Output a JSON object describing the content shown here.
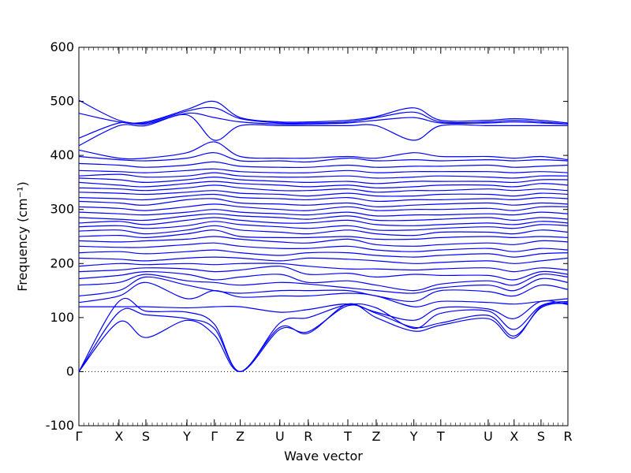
{
  "chart_data": {
    "type": "line",
    "title": "",
    "xlabel": "Wave vector",
    "ylabel": "Frequency (cm⁻¹)",
    "ylim": [
      -100,
      600
    ],
    "yticks": [
      -100,
      0,
      100,
      200,
      300,
      400,
      500,
      600
    ],
    "x_range": [
      0,
      1
    ],
    "q_points": [
      {
        "label": "Γ",
        "x": 0.0
      },
      {
        "label": "X",
        "x": 0.082
      },
      {
        "label": "S",
        "x": 0.137
      },
      {
        "label": "Y",
        "x": 0.221
      },
      {
        "label": "Γ",
        "x": 0.277
      },
      {
        "label": "Z",
        "x": 0.33
      },
      {
        "label": "U",
        "x": 0.411
      },
      {
        "label": "R",
        "x": 0.469
      },
      {
        "label": "T",
        "x": 0.55
      },
      {
        "label": "Z",
        "x": 0.608
      },
      {
        "label": "Y",
        "x": 0.685
      },
      {
        "label": "T",
        "x": 0.74
      },
      {
        "label": "U",
        "x": 0.837
      },
      {
        "label": "X",
        "x": 0.89
      },
      {
        "label": "S",
        "x": 0.945
      },
      {
        "label": "R",
        "x": 1.0
      }
    ],
    "zero_line": 0,
    "line_color": "#0000ff",
    "series": [
      {
        "values": [
          0,
          92,
          63,
          95,
          68,
          0,
          82,
          71,
          125,
          100,
          75,
          86,
          98,
          62,
          120,
          126
        ]
      },
      {
        "values": [
          0,
          110,
          105,
          98,
          80,
          0,
          78,
          74,
          122,
          108,
          82,
          90,
          104,
          66,
          118,
          128
        ]
      },
      {
        "values": [
          0,
          130,
          112,
          110,
          88,
          0,
          90,
          100,
          124,
          118,
          80,
          108,
          112,
          78,
          122,
          130
        ]
      },
      {
        "values": [
          120,
          120,
          120,
          118,
          120,
          120,
          110,
          115,
          125,
          110,
          95,
          118,
          116,
          98,
          130,
          124
        ]
      },
      {
        "values": [
          128,
          140,
          165,
          135,
          150,
          138,
          140,
          140,
          145,
          140,
          120,
          130,
          128,
          125,
          130,
          135
        ]
      },
      {
        "values": [
          140,
          150,
          175,
          160,
          150,
          145,
          150,
          150,
          150,
          140,
          130,
          150,
          148,
          140,
          160,
          152
        ]
      },
      {
        "values": [
          160,
          165,
          180,
          168,
          165,
          160,
          165,
          162,
          155,
          150,
          145,
          155,
          160,
          150,
          172,
          165
        ]
      },
      {
        "values": [
          172,
          178,
          185,
          180,
          170,
          175,
          180,
          165,
          168,
          160,
          150,
          162,
          168,
          160,
          180,
          175
        ]
      },
      {
        "values": [
          185,
          188,
          192,
          190,
          185,
          188,
          195,
          180,
          182,
          175,
          180,
          178,
          178,
          170,
          185,
          180
        ]
      },
      {
        "values": [
          195,
          200,
          198,
          200,
          198,
          200,
          200,
          195,
          190,
          190,
          188,
          190,
          192,
          185,
          192,
          188
        ]
      },
      {
        "values": [
          210,
          208,
          205,
          210,
          212,
          210,
          205,
          210,
          208,
          205,
          200,
          202,
          205,
          200,
          205,
          210
        ]
      },
      {
        "values": [
          220,
          222,
          218,
          222,
          225,
          220,
          215,
          220,
          220,
          215,
          212,
          215,
          218,
          212,
          218,
          220
        ]
      },
      {
        "values": [
          232,
          230,
          230,
          235,
          238,
          232,
          228,
          228,
          232,
          225,
          222,
          225,
          228,
          222,
          228,
          225
        ]
      },
      {
        "values": [
          242,
          240,
          242,
          245,
          250,
          245,
          240,
          238,
          245,
          235,
          232,
          235,
          238,
          235,
          242,
          240
        ]
      },
      {
        "values": [
          250,
          252,
          248,
          255,
          262,
          250,
          248,
          248,
          250,
          245,
          245,
          248,
          250,
          248,
          250,
          248
        ]
      },
      {
        "values": [
          260,
          262,
          255,
          262,
          270,
          262,
          258,
          255,
          262,
          255,
          252,
          258,
          258,
          255,
          262,
          258
        ]
      },
      {
        "values": [
          268,
          270,
          265,
          270,
          278,
          272,
          268,
          265,
          270,
          262,
          262,
          265,
          268,
          265,
          272,
          270
        ]
      },
      {
        "values": [
          275,
          278,
          272,
          280,
          285,
          280,
          275,
          275,
          280,
          272,
          270,
          272,
          275,
          272,
          278,
          275
        ]
      },
      {
        "values": [
          285,
          282,
          280,
          288,
          292,
          288,
          285,
          282,
          288,
          280,
          280,
          282,
          285,
          280,
          285,
          282
        ]
      },
      {
        "values": [
          295,
          292,
          290,
          295,
          300,
          295,
          292,
          290,
          295,
          288,
          290,
          290,
          292,
          290,
          295,
          292
        ]
      },
      {
        "values": [
          305,
          302,
          298,
          305,
          310,
          305,
          300,
          298,
          305,
          298,
          300,
          300,
          302,
          298,
          305,
          305
        ]
      },
      {
        "values": [
          315,
          312,
          308,
          318,
          320,
          312,
          310,
          308,
          312,
          305,
          308,
          310,
          312,
          308,
          312,
          310
        ]
      },
      {
        "values": [
          322,
          320,
          318,
          325,
          328,
          322,
          320,
          318,
          322,
          315,
          318,
          318,
          320,
          318,
          322,
          320
        ]
      },
      {
        "values": [
          332,
          330,
          328,
          332,
          335,
          330,
          328,
          325,
          330,
          325,
          325,
          328,
          328,
          325,
          330,
          328
        ]
      },
      {
        "values": [
          340,
          338,
          335,
          340,
          345,
          340,
          335,
          335,
          338,
          332,
          335,
          335,
          338,
          335,
          338,
          335
        ]
      },
      {
        "values": [
          350,
          345,
          342,
          348,
          352,
          348,
          345,
          342,
          345,
          340,
          342,
          345,
          345,
          342,
          348,
          345
        ]
      },
      {
        "values": [
          358,
          355,
          350,
          355,
          360,
          355,
          352,
          350,
          352,
          348,
          352,
          352,
          352,
          350,
          355,
          355
        ]
      },
      {
        "values": [
          362,
          365,
          360,
          362,
          368,
          362,
          360,
          360,
          362,
          358,
          360,
          362,
          360,
          358,
          362,
          362
        ]
      },
      {
        "values": [
          372,
          370,
          368,
          372,
          375,
          370,
          368,
          368,
          372,
          368,
          370,
          370,
          370,
          368,
          370,
          368
        ]
      },
      {
        "values": [
          385,
          382,
          378,
          382,
          388,
          380,
          378,
          378,
          382,
          378,
          380,
          380,
          382,
          378,
          380,
          382
        ]
      },
      {
        "values": [
          398,
          392,
          390,
          395,
          405,
          390,
          390,
          388,
          395,
          390,
          392,
          390,
          392,
          390,
          392,
          390
        ]
      },
      {
        "values": [
          410,
          395,
          395,
          405,
          425,
          398,
          395,
          395,
          398,
          395,
          405,
          398,
          398,
          395,
          398,
          392
        ]
      },
      {
        "values": [
          418,
          455,
          455,
          475,
          428,
          455,
          455,
          455,
          455,
          455,
          428,
          455,
          455,
          455,
          455,
          455
        ]
      },
      {
        "values": [
          432,
          460,
          458,
          478,
          470,
          462,
          458,
          458,
          460,
          465,
          470,
          460,
          460,
          462,
          460,
          458
        ]
      },
      {
        "values": [
          478,
          462,
          460,
          482,
          488,
          468,
          460,
          460,
          462,
          470,
          480,
          462,
          462,
          465,
          462,
          458
        ]
      },
      {
        "values": [
          502,
          465,
          462,
          485,
          500,
          470,
          462,
          462,
          465,
          472,
          488,
          465,
          465,
          468,
          465,
          460
        ]
      }
    ]
  }
}
